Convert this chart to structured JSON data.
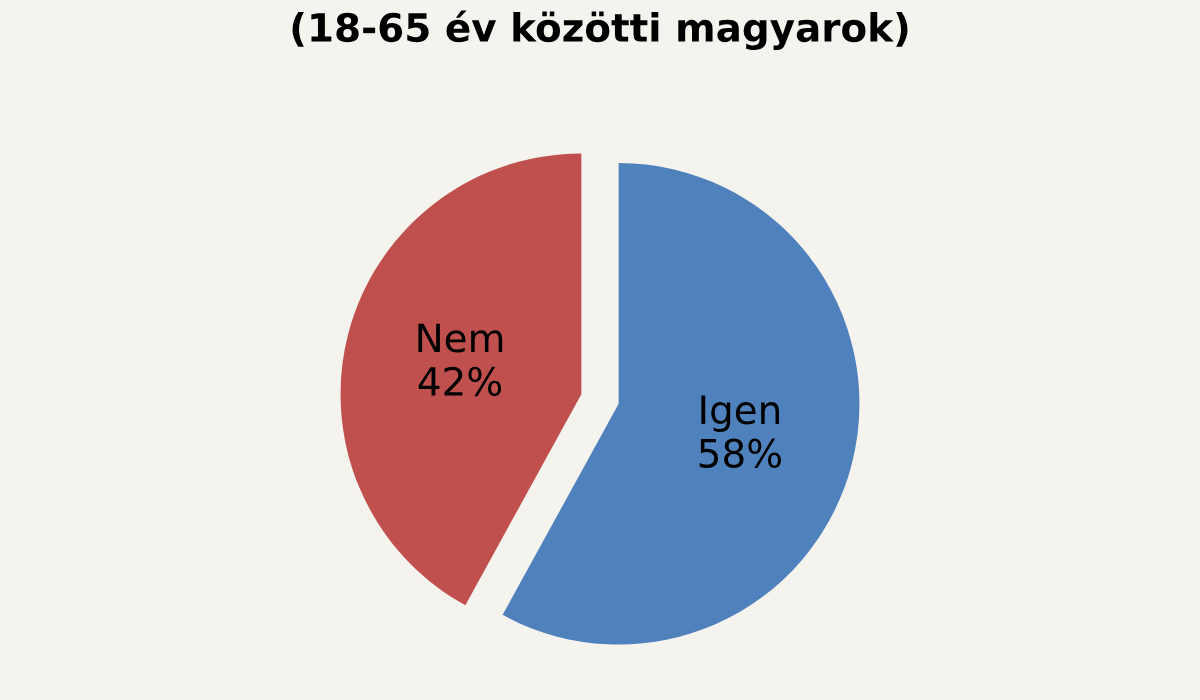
{
  "chart_data": {
    "type": "pie",
    "subtitle": "(18-65 év közötti magyarok)",
    "categories": [
      "Igen",
      "Nem"
    ],
    "values": [
      58,
      42
    ],
    "colors": [
      "#4f81bd",
      "#c0504d"
    ],
    "value_labels": [
      "58%",
      "42%"
    ]
  }
}
